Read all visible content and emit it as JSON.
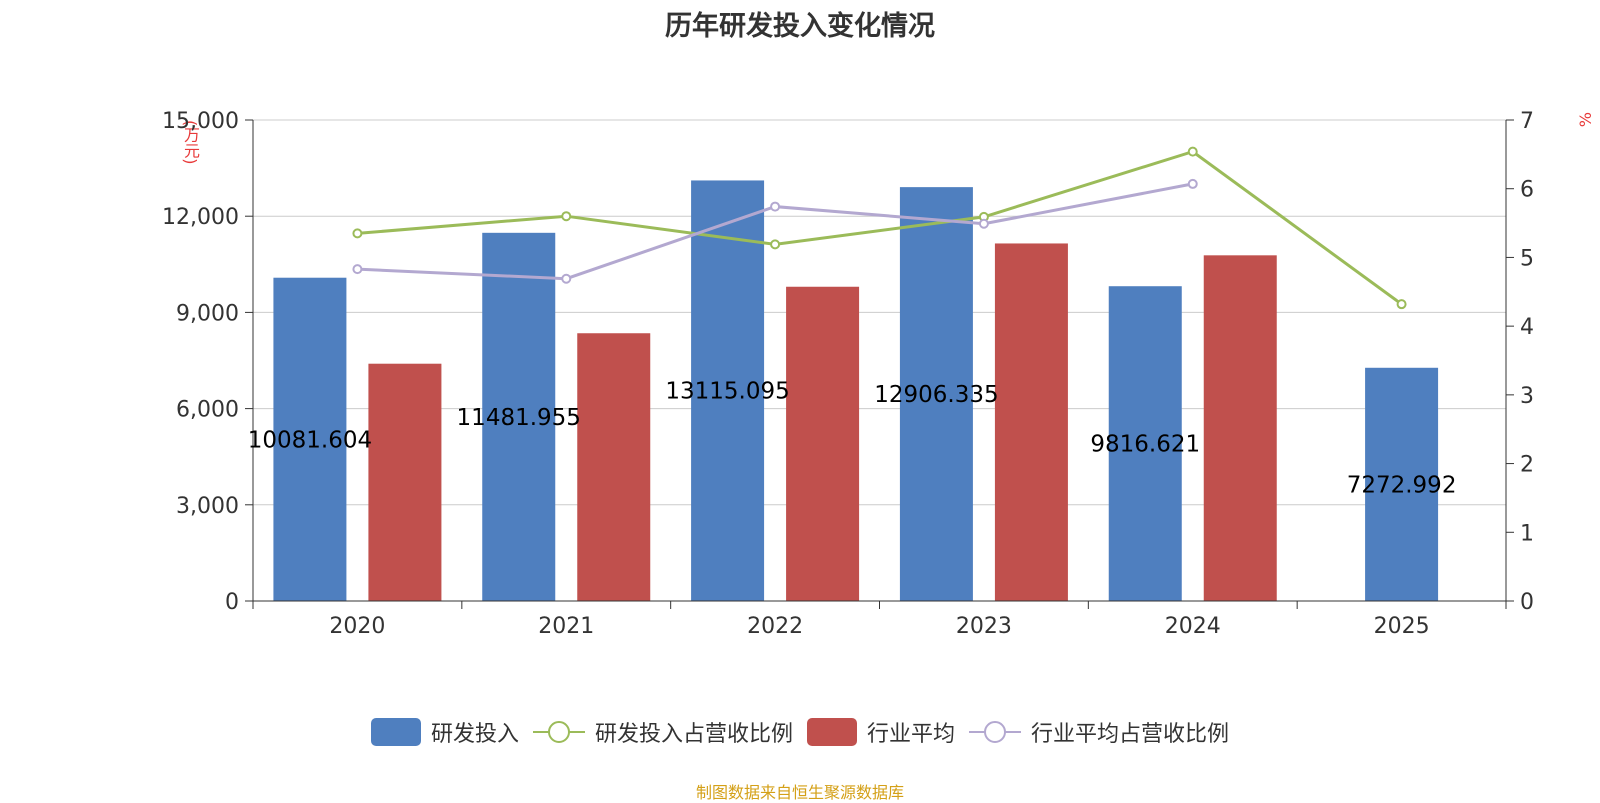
{
  "chart_data": {
    "type": "bar",
    "title": "历年研发投入变化情况",
    "categories": [
      "2020",
      "2021",
      "2022",
      "2023",
      "2024",
      "2025"
    ],
    "y_left": {
      "unit": "(万元)",
      "ticks": [
        "0",
        "3,000",
        "6,000",
        "9,000",
        "12,000",
        "15,000"
      ],
      "lim": [
        0,
        15000
      ]
    },
    "y_right": {
      "unit": "%",
      "ticks": [
        "0",
        "1",
        "2",
        "3",
        "4",
        "5",
        "6",
        "7"
      ],
      "lim": [
        0,
        7
      ]
    },
    "grid": true,
    "legend_position": "bottom",
    "series": [
      {
        "name": "研发投入",
        "kind": "bar",
        "axis": "left",
        "color": "#4f7fbf",
        "values": [
          10081.604,
          11481.955,
          13115.095,
          12906.335,
          9816.621,
          7272.992
        ],
        "labels": [
          "10081.604",
          "11481.955",
          "13115.095",
          "12906.335",
          "9816.621",
          "7272.992"
        ]
      },
      {
        "name": "研发投入占营收比例",
        "kind": "line",
        "axis": "right",
        "color": "#9bbb59",
        "values": [
          5.35,
          5.6,
          5.19,
          5.59,
          6.54,
          4.32
        ]
      },
      {
        "name": "行业平均",
        "kind": "bar",
        "axis": "left",
        "color": "#c0504d",
        "values": [
          7400,
          8350,
          9800,
          11150,
          10780,
          null
        ]
      },
      {
        "name": "行业平均占营收比例",
        "kind": "line",
        "axis": "right",
        "color": "#b3a8d0",
        "values": [
          4.83,
          4.69,
          5.74,
          5.49,
          6.07,
          null
        ]
      }
    ]
  },
  "footer": {
    "source": "制图数据来自恒生聚源数据库"
  }
}
